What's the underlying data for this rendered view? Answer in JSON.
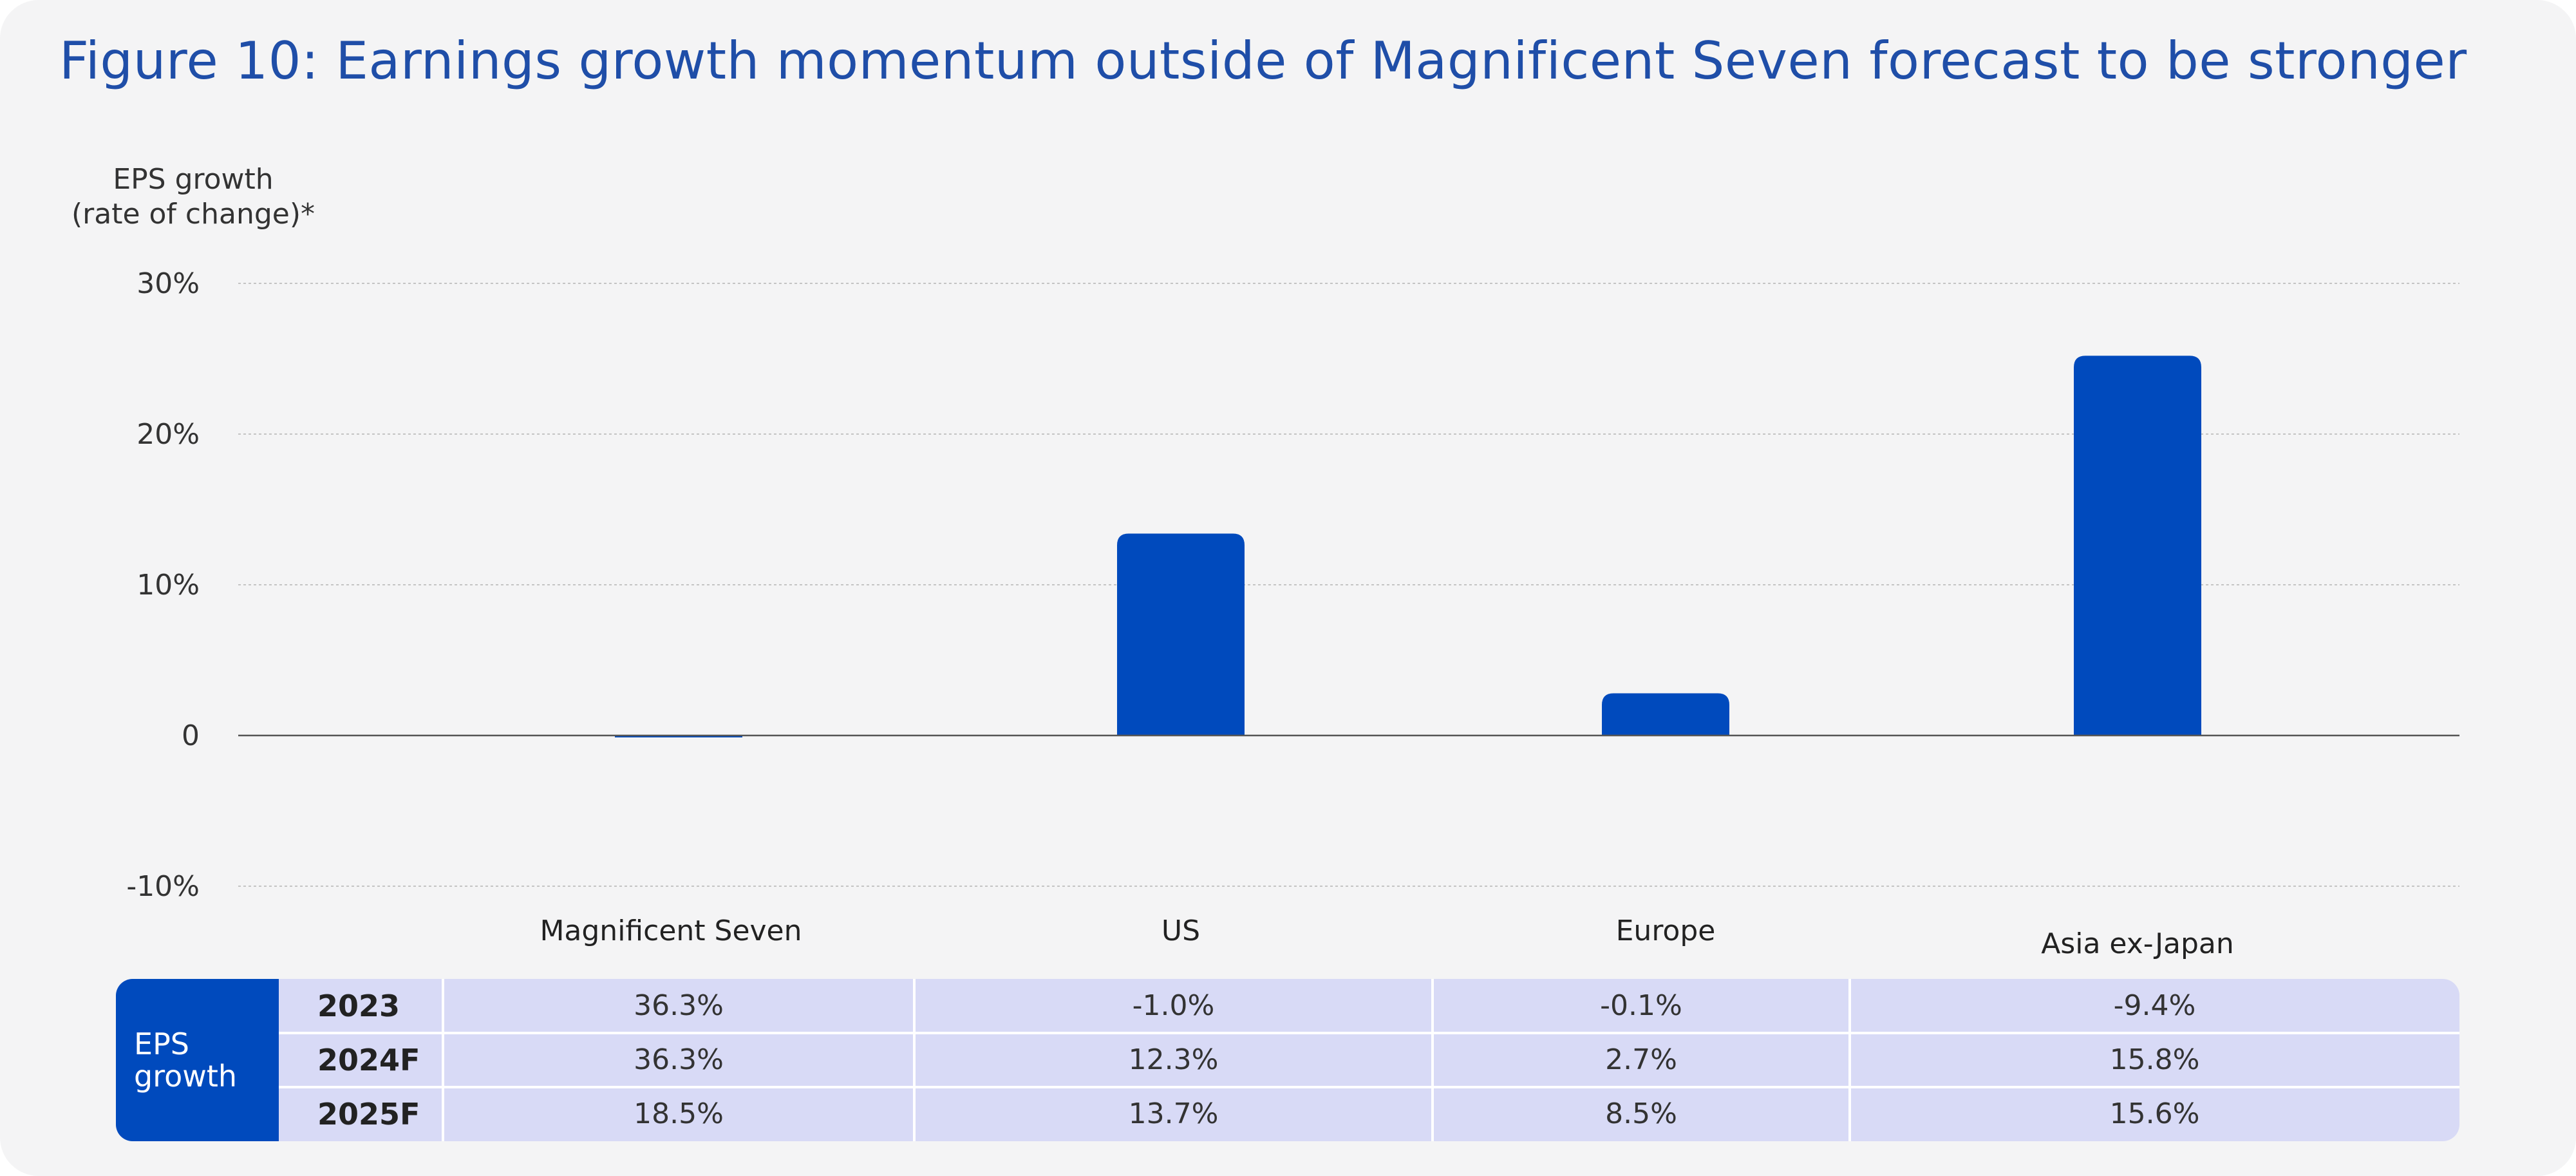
{
  "title": "Figure 10: Earnings growth momentum outside of Magnificent Seven forecast to be stronger",
  "chart_data": {
    "type": "bar",
    "ylabel": "EPS growth (rate of change)*",
    "ylabel_lines": [
      "EPS growth",
      "(rate of change)*"
    ],
    "categories": [
      "Magnificent Seven",
      "US",
      "Europe",
      "Asia ex-Japan"
    ],
    "values": [
      -0.1,
      13.4,
      2.8,
      25.2
    ],
    "ylim": [
      -10,
      30
    ],
    "yticks": [
      30,
      20,
      10,
      0,
      -10
    ],
    "ytick_labels": [
      "30%",
      "20%",
      "10%",
      "0",
      "-10%"
    ],
    "bar_color": "#004abd",
    "grid": true
  },
  "table": {
    "header_lines": [
      "EPS",
      "growth"
    ],
    "header_color": "#004abd",
    "rows": [
      {
        "year": "2023",
        "values": [
          "36.3%",
          "-1.0%",
          "-0.1%",
          "-9.4%"
        ]
      },
      {
        "year": "2024F",
        "values": [
          "36.3%",
          "12.3%",
          "2.7%",
          "15.8%"
        ]
      },
      {
        "year": "2025F",
        "values": [
          "18.5%",
          "13.7%",
          "8.5%",
          "15.6%"
        ]
      }
    ]
  }
}
